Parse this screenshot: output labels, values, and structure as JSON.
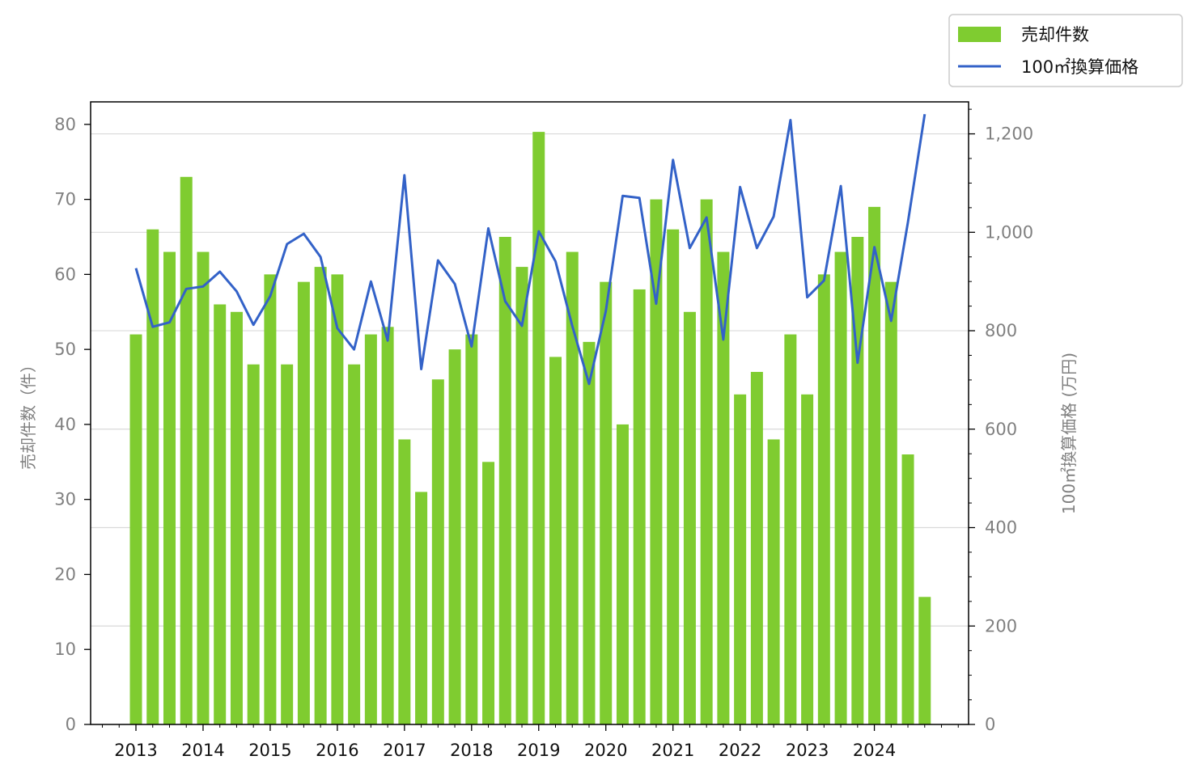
{
  "chart_data": {
    "type": "bar+line",
    "title": "",
    "xlabel": "",
    "x_tick_labels": [
      "2013",
      "2014",
      "2015",
      "2016",
      "2017",
      "2018",
      "2019",
      "2020",
      "2021",
      "2022",
      "2023",
      "2024"
    ],
    "quarters_per_year": 4,
    "start_year": 2013,
    "series": [
      {
        "name": "売却件数",
        "type": "bar",
        "axis": "left",
        "color": "#7fcc30",
        "values": [
          52,
          66,
          63,
          73,
          63,
          56,
          55,
          48,
          60,
          48,
          59,
          61,
          60,
          48,
          52,
          53,
          38,
          31,
          46,
          50,
          52,
          35,
          65,
          61,
          79,
          49,
          63,
          51,
          59,
          40,
          58,
          70,
          66,
          55,
          70,
          63,
          44,
          47,
          38,
          52,
          44,
          60,
          63,
          65,
          69,
          59,
          36,
          17
        ]
      },
      {
        "name": "100㎡換算価格",
        "type": "line",
        "axis": "right",
        "color": "#3362c8",
        "values": [
          927,
          808,
          817,
          885,
          890,
          920,
          880,
          812,
          870,
          976,
          997,
          950,
          805,
          762,
          900,
          780,
          1116,
          722,
          943,
          895,
          768,
          1008,
          860,
          810,
          1002,
          941,
          810,
          692,
          840,
          1074,
          1070,
          855,
          1147,
          968,
          1030,
          782,
          1092,
          968,
          1032,
          1228,
          868,
          902,
          1094,
          735,
          970,
          820,
          1020,
          1240
        ]
      }
    ],
    "left_axis": {
      "label": "売却件数（件）",
      "ylim": [
        0,
        83
      ],
      "ticks": [
        "0",
        "10",
        "20",
        "30",
        "40",
        "50",
        "60",
        "70",
        "80"
      ]
    },
    "right_axis": {
      "label": "100㎡換算価格 (万円)",
      "ylim": [
        0,
        1265
      ],
      "ticks": [
        "0",
        "200",
        "400",
        "600",
        "800",
        "1,000",
        "1,200"
      ]
    },
    "grid": "horizontal, right axis major ticks",
    "legend": {
      "placement": "top-right, above plot"
    }
  }
}
